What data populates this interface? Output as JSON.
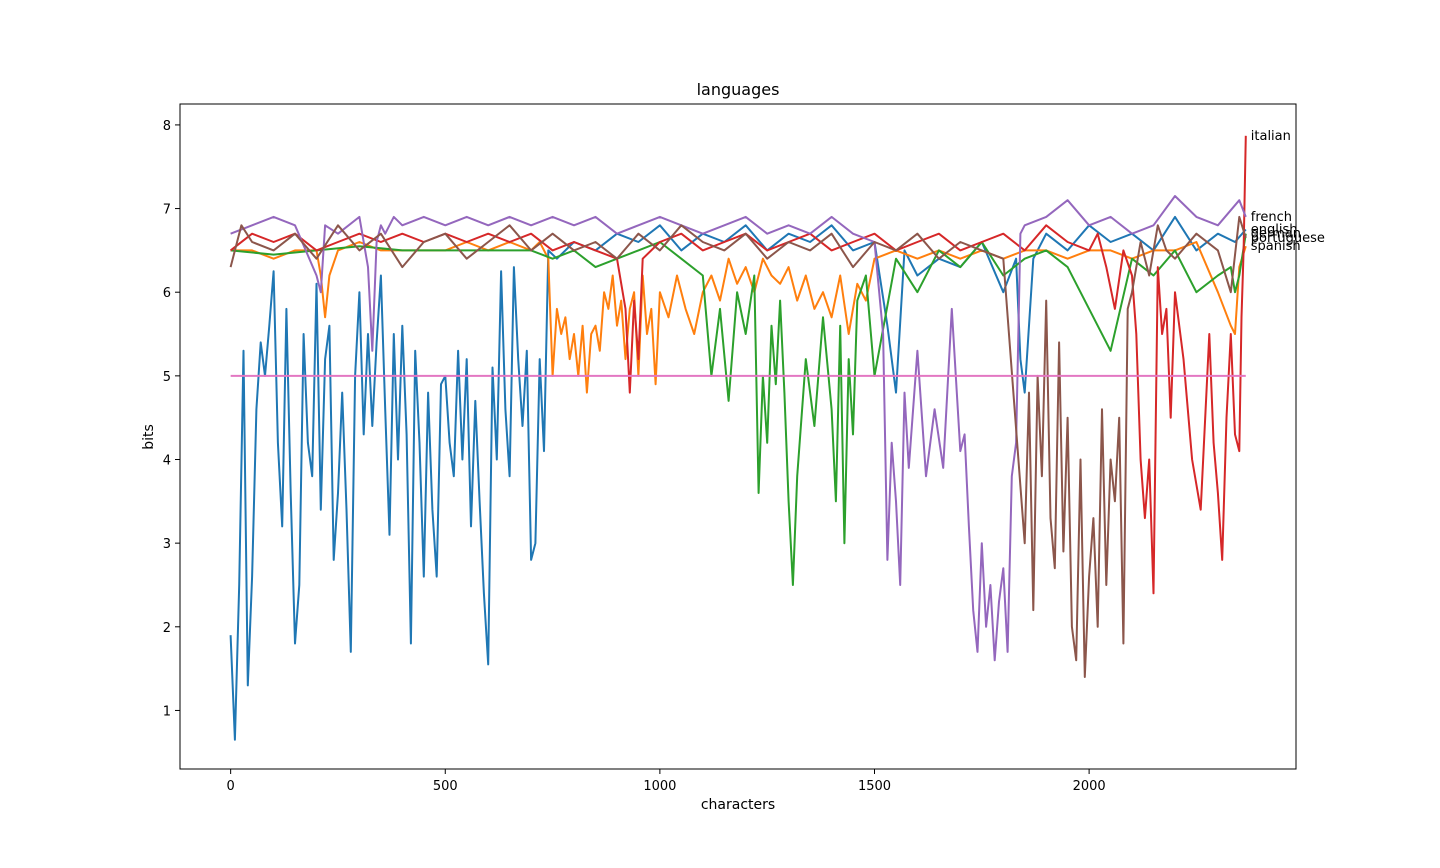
{
  "chart_data": {
    "type": "line",
    "title": "languages",
    "xlabel": "characters",
    "ylabel": "bits",
    "xlim": [
      -118,
      2482
    ],
    "ylim": [
      0.3,
      8.25
    ],
    "xticks": [
      0,
      500,
      1000,
      1500,
      2000
    ],
    "yticks": [
      1,
      2,
      3,
      4,
      5,
      6,
      7,
      8
    ],
    "grid": false,
    "legend": "labels at line ends (right)",
    "threshold": {
      "value": 5,
      "color": "#e377c2",
      "x_range": [
        0,
        2365
      ]
    },
    "series": [
      {
        "name": "english",
        "color": "#1f77b4",
        "end_value": 6.75,
        "x": [
          0,
          10,
          20,
          30,
          40,
          50,
          60,
          70,
          80,
          90,
          100,
          110,
          120,
          130,
          140,
          150,
          160,
          170,
          180,
          190,
          200,
          210,
          220,
          230,
          240,
          250,
          260,
          270,
          280,
          290,
          300,
          310,
          320,
          330,
          340,
          350,
          360,
          370,
          380,
          390,
          400,
          410,
          420,
          430,
          440,
          450,
          460,
          470,
          480,
          490,
          500,
          510,
          520,
          530,
          540,
          550,
          560,
          570,
          580,
          590,
          600,
          610,
          620,
          630,
          640,
          650,
          660,
          670,
          680,
          690,
          700,
          710,
          720,
          730,
          740,
          760,
          800,
          850,
          900,
          950,
          1000,
          1050,
          1100,
          1150,
          1200,
          1250,
          1300,
          1350,
          1400,
          1450,
          1500,
          1530,
          1550,
          1570,
          1600,
          1650,
          1700,
          1750,
          1800,
          1830,
          1840,
          1850,
          1870,
          1900,
          1950,
          2000,
          2050,
          2100,
          2150,
          2200,
          2250,
          2300,
          2340,
          2365
        ],
        "values": [
          1.9,
          0.65,
          2.5,
          5.3,
          1.3,
          2.6,
          4.6,
          5.4,
          5.0,
          5.6,
          6.25,
          4.2,
          3.2,
          5.8,
          3.6,
          1.8,
          2.5,
          5.5,
          4.2,
          3.8,
          6.1,
          3.4,
          5.2,
          5.6,
          2.8,
          3.6,
          4.8,
          3.4,
          1.7,
          5.0,
          6.0,
          4.3,
          5.5,
          4.4,
          5.4,
          6.2,
          4.6,
          3.1,
          5.5,
          4.0,
          5.6,
          4.3,
          1.8,
          5.3,
          4.2,
          2.6,
          4.8,
          3.4,
          2.6,
          4.9,
          5.0,
          4.2,
          3.8,
          5.3,
          4.0,
          5.2,
          3.2,
          4.7,
          3.5,
          2.4,
          1.55,
          5.1,
          4.0,
          6.25,
          4.6,
          3.8,
          6.3,
          5.2,
          4.4,
          5.3,
          2.8,
          3.0,
          5.2,
          4.1,
          6.5,
          6.4,
          6.6,
          6.5,
          6.7,
          6.6,
          6.8,
          6.5,
          6.7,
          6.6,
          6.8,
          6.5,
          6.7,
          6.6,
          6.8,
          6.5,
          6.6,
          5.6,
          4.8,
          6.5,
          6.2,
          6.4,
          6.3,
          6.6,
          6.0,
          6.4,
          5.2,
          4.8,
          6.4,
          6.7,
          6.5,
          6.8,
          6.6,
          6.7,
          6.5,
          6.9,
          6.5,
          6.7,
          6.6,
          6.75
        ]
      },
      {
        "name": "spanish",
        "color": "#ff7f0e",
        "end_value": 6.55,
        "x": [
          0,
          50,
          100,
          150,
          200,
          210,
          220,
          230,
          250,
          300,
          350,
          400,
          450,
          500,
          550,
          600,
          650,
          700,
          720,
          740,
          750,
          760,
          770,
          780,
          790,
          800,
          810,
          820,
          830,
          840,
          850,
          860,
          870,
          880,
          890,
          900,
          910,
          920,
          930,
          940,
          950,
          960,
          970,
          980,
          990,
          1000,
          1020,
          1040,
          1060,
          1080,
          1100,
          1120,
          1140,
          1160,
          1180,
          1200,
          1220,
          1240,
          1260,
          1280,
          1300,
          1320,
          1340,
          1360,
          1380,
          1400,
          1420,
          1440,
          1460,
          1480,
          1500,
          1550,
          1600,
          1650,
          1700,
          1750,
          1800,
          1850,
          1900,
          1950,
          2000,
          2050,
          2100,
          2150,
          2200,
          2250,
          2300,
          2330,
          2340,
          2350,
          2365
        ],
        "values": [
          6.5,
          6.5,
          6.4,
          6.5,
          6.5,
          6.2,
          5.7,
          6.2,
          6.5,
          6.6,
          6.5,
          6.5,
          6.5,
          6.5,
          6.6,
          6.5,
          6.6,
          6.5,
          6.6,
          6.4,
          5.0,
          5.8,
          5.5,
          5.7,
          5.2,
          5.5,
          5.0,
          5.6,
          4.8,
          5.5,
          5.6,
          5.3,
          6.0,
          5.8,
          6.2,
          5.6,
          5.9,
          5.2,
          5.8,
          6.0,
          5.0,
          6.2,
          5.5,
          5.8,
          4.9,
          6.0,
          5.7,
          6.2,
          5.8,
          5.5,
          6.0,
          6.2,
          5.9,
          6.4,
          6.1,
          6.3,
          6.0,
          6.4,
          6.2,
          6.1,
          6.3,
          5.9,
          6.2,
          5.8,
          6.0,
          5.7,
          6.2,
          5.5,
          6.1,
          5.9,
          6.4,
          6.5,
          6.4,
          6.5,
          6.4,
          6.5,
          6.4,
          6.5,
          6.5,
          6.4,
          6.5,
          6.5,
          6.4,
          6.5,
          6.5,
          6.6,
          6.0,
          5.6,
          5.5,
          6.3,
          6.55
        ]
      },
      {
        "name": "german",
        "color": "#2ca02c",
        "end_value": 6.7,
        "x": [
          0,
          100,
          200,
          300,
          400,
          500,
          600,
          700,
          750,
          800,
          850,
          900,
          950,
          1000,
          1050,
          1100,
          1120,
          1140,
          1160,
          1180,
          1200,
          1220,
          1230,
          1240,
          1250,
          1260,
          1270,
          1280,
          1290,
          1300,
          1310,
          1320,
          1340,
          1360,
          1380,
          1400,
          1410,
          1420,
          1430,
          1440,
          1450,
          1460,
          1480,
          1500,
          1550,
          1600,
          1650,
          1700,
          1750,
          1800,
          1850,
          1900,
          1950,
          2000,
          2050,
          2100,
          2150,
          2200,
          2250,
          2300,
          2330,
          2340,
          2350,
          2365
        ],
        "values": [
          6.5,
          6.45,
          6.5,
          6.55,
          6.5,
          6.5,
          6.5,
          6.5,
          6.4,
          6.5,
          6.3,
          6.4,
          6.5,
          6.6,
          6.4,
          6.2,
          5.0,
          5.8,
          4.7,
          6.0,
          5.5,
          6.2,
          3.6,
          5.0,
          4.2,
          5.6,
          4.9,
          5.9,
          4.8,
          3.5,
          2.5,
          3.8,
          5.2,
          4.4,
          5.7,
          4.6,
          3.5,
          5.6,
          3.0,
          5.2,
          4.3,
          5.9,
          6.2,
          5.0,
          6.4,
          6.0,
          6.5,
          6.3,
          6.6,
          6.2,
          6.4,
          6.5,
          6.3,
          5.8,
          5.3,
          6.4,
          6.2,
          6.5,
          6.0,
          6.2,
          6.3,
          6.0,
          6.2,
          6.7
        ]
      },
      {
        "name": "italian",
        "color": "#d62728",
        "end_value": 7.87,
        "x": [
          0,
          50,
          100,
          150,
          200,
          250,
          300,
          350,
          400,
          450,
          500,
          550,
          600,
          650,
          700,
          750,
          800,
          850,
          900,
          920,
          930,
          940,
          950,
          960,
          1000,
          1050,
          1100,
          1150,
          1200,
          1250,
          1300,
          1350,
          1400,
          1450,
          1500,
          1550,
          1600,
          1650,
          1700,
          1750,
          1800,
          1850,
          1900,
          1950,
          2000,
          2020,
          2040,
          2060,
          2080,
          2100,
          2110,
          2120,
          2130,
          2140,
          2150,
          2160,
          2170,
          2180,
          2190,
          2200,
          2220,
          2240,
          2260,
          2280,
          2290,
          2300,
          2310,
          2320,
          2330,
          2340,
          2350,
          2355,
          2360,
          2365
        ],
        "values": [
          6.5,
          6.7,
          6.6,
          6.7,
          6.5,
          6.6,
          6.7,
          6.6,
          6.7,
          6.6,
          6.7,
          6.6,
          6.7,
          6.6,
          6.7,
          6.5,
          6.6,
          6.5,
          6.4,
          5.8,
          4.8,
          5.9,
          5.2,
          6.4,
          6.6,
          6.7,
          6.5,
          6.6,
          6.7,
          6.5,
          6.6,
          6.7,
          6.5,
          6.6,
          6.7,
          6.5,
          6.6,
          6.7,
          6.5,
          6.6,
          6.7,
          6.5,
          6.8,
          6.6,
          6.5,
          6.7,
          6.3,
          5.8,
          6.5,
          6.2,
          5.5,
          4.0,
          3.3,
          4.0,
          2.4,
          6.3,
          5.5,
          5.8,
          4.5,
          6.0,
          5.2,
          4.0,
          3.4,
          5.5,
          4.2,
          3.6,
          2.8,
          4.5,
          5.5,
          4.3,
          4.1,
          5.7,
          6.5,
          7.87
        ]
      },
      {
        "name": "french",
        "color": "#9467bd",
        "end_value": 6.9,
        "x": [
          0,
          50,
          100,
          150,
          200,
          210,
          220,
          250,
          300,
          320,
          330,
          340,
          350,
          360,
          380,
          400,
          450,
          500,
          550,
          600,
          650,
          700,
          750,
          800,
          850,
          900,
          950,
          1000,
          1050,
          1100,
          1150,
          1200,
          1250,
          1300,
          1350,
          1400,
          1450,
          1500,
          1520,
          1530,
          1540,
          1550,
          1560,
          1570,
          1580,
          1600,
          1620,
          1640,
          1660,
          1680,
          1700,
          1710,
          1720,
          1730,
          1740,
          1750,
          1760,
          1770,
          1780,
          1790,
          1800,
          1810,
          1820,
          1830,
          1840,
          1850,
          1900,
          1950,
          2000,
          2050,
          2100,
          2150,
          2200,
          2250,
          2300,
          2350,
          2365
        ],
        "values": [
          6.7,
          6.8,
          6.9,
          6.8,
          6.2,
          6.0,
          6.8,
          6.7,
          6.9,
          6.3,
          5.3,
          6.6,
          6.8,
          6.7,
          6.9,
          6.8,
          6.9,
          6.8,
          6.9,
          6.8,
          6.9,
          6.8,
          6.9,
          6.8,
          6.9,
          6.7,
          6.8,
          6.9,
          6.8,
          6.7,
          6.8,
          6.9,
          6.7,
          6.8,
          6.7,
          6.9,
          6.7,
          6.6,
          5.5,
          2.8,
          4.2,
          3.5,
          2.5,
          4.8,
          3.9,
          5.3,
          3.8,
          4.6,
          3.9,
          5.8,
          4.1,
          4.3,
          3.2,
          2.2,
          1.7,
          3.0,
          2.0,
          2.5,
          1.6,
          2.3,
          2.7,
          1.7,
          3.8,
          4.2,
          6.7,
          6.8,
          6.9,
          7.1,
          6.8,
          6.9,
          6.7,
          6.8,
          7.15,
          6.9,
          6.8,
          7.1,
          6.9
        ]
      },
      {
        "name": "portuguese",
        "color": "#8c564b",
        "end_value": 6.65,
        "x": [
          0,
          25,
          50,
          100,
          150,
          200,
          250,
          300,
          350,
          400,
          450,
          500,
          550,
          600,
          650,
          700,
          750,
          800,
          850,
          900,
          950,
          1000,
          1050,
          1100,
          1150,
          1200,
          1250,
          1300,
          1350,
          1400,
          1450,
          1500,
          1550,
          1600,
          1650,
          1700,
          1750,
          1800,
          1850,
          1860,
          1870,
          1880,
          1890,
          1900,
          1910,
          1920,
          1930,
          1940,
          1950,
          1960,
          1970,
          1980,
          1990,
          2000,
          2010,
          2020,
          2030,
          2040,
          2050,
          2060,
          2070,
          2080,
          2090,
          2100,
          2120,
          2140,
          2160,
          2180,
          2200,
          2250,
          2300,
          2330,
          2350,
          2365
        ],
        "values": [
          6.3,
          6.8,
          6.6,
          6.5,
          6.7,
          6.4,
          6.8,
          6.5,
          6.7,
          6.3,
          6.6,
          6.7,
          6.4,
          6.6,
          6.8,
          6.5,
          6.7,
          6.5,
          6.6,
          6.4,
          6.7,
          6.5,
          6.8,
          6.6,
          6.5,
          6.7,
          6.4,
          6.6,
          6.5,
          6.7,
          6.3,
          6.6,
          6.5,
          6.7,
          6.4,
          6.6,
          6.5,
          6.4,
          3.0,
          4.8,
          2.2,
          5.0,
          3.8,
          5.9,
          3.3,
          2.7,
          5.4,
          2.9,
          4.5,
          2.0,
          1.6,
          4.0,
          1.4,
          2.6,
          3.3,
          2.0,
          4.6,
          2.5,
          4.0,
          3.5,
          4.5,
          1.8,
          5.8,
          6.0,
          6.6,
          6.2,
          6.8,
          6.5,
          6.4,
          6.7,
          6.5,
          6.0,
          6.9,
          6.65
        ]
      }
    ]
  }
}
